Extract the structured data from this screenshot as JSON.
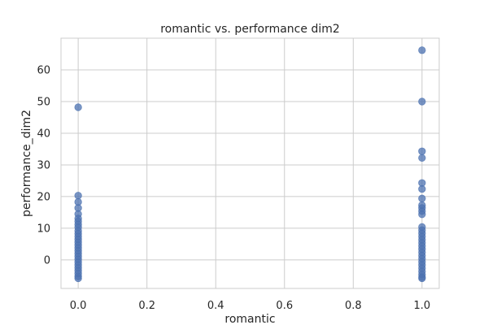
{
  "chart_data": {
    "type": "scatter",
    "title": "romantic vs. performance dim2",
    "xlabel": "romantic",
    "ylabel": "performance_dim2",
    "xlim": [
      -0.05,
      1.05
    ],
    "ylim": [
      -9,
      70
    ],
    "xticks": [
      "0.0",
      "0.2",
      "0.4",
      "0.6",
      "0.8",
      "1.0"
    ],
    "yticks": [
      "0",
      "10",
      "20",
      "30",
      "40",
      "50",
      "60"
    ],
    "grid": true,
    "series": [
      {
        "color": "#4c72b0",
        "points": [
          [
            0,
            48.2
          ],
          [
            0,
            20.3
          ],
          [
            0,
            18.3
          ],
          [
            0,
            16.4
          ],
          [
            0,
            14.5
          ],
          [
            0,
            13.1
          ],
          [
            0,
            12.2
          ],
          [
            0,
            11.2
          ],
          [
            0,
            10.3
          ],
          [
            0,
            9.2
          ],
          [
            0,
            8.3
          ],
          [
            0,
            7.4
          ],
          [
            0,
            6.5
          ],
          [
            0,
            5.6
          ],
          [
            0,
            4.7
          ],
          [
            0,
            3.8
          ],
          [
            0,
            2.9
          ],
          [
            0,
            2.0
          ],
          [
            0,
            1.1
          ],
          [
            0,
            0.2
          ],
          [
            0,
            -0.7
          ],
          [
            0,
            -1.6
          ],
          [
            0,
            -2.5
          ],
          [
            0,
            -3.4
          ],
          [
            0,
            -4.3
          ],
          [
            0,
            -5.2
          ],
          [
            0,
            -5.8
          ],
          [
            1,
            66.2
          ],
          [
            1,
            50.0
          ],
          [
            1,
            34.3
          ],
          [
            1,
            32.2
          ],
          [
            1,
            24.3
          ],
          [
            1,
            22.4
          ],
          [
            1,
            19.4
          ],
          [
            1,
            17.3
          ],
          [
            1,
            16.4
          ],
          [
            1,
            15.4
          ],
          [
            1,
            14.4
          ],
          [
            1,
            10.4
          ],
          [
            1,
            9.4
          ],
          [
            1,
            8.4
          ],
          [
            1,
            7.4
          ],
          [
            1,
            6.4
          ],
          [
            1,
            5.4
          ],
          [
            1,
            4.4
          ],
          [
            1,
            3.4
          ],
          [
            1,
            2.4
          ],
          [
            1,
            1.4
          ],
          [
            1,
            0.4
          ],
          [
            1,
            -0.6
          ],
          [
            1,
            -1.6
          ],
          [
            1,
            -2.6
          ],
          [
            1,
            -3.6
          ],
          [
            1,
            -4.6
          ],
          [
            1,
            -5.4
          ],
          [
            1,
            -5.8
          ]
        ]
      }
    ]
  }
}
